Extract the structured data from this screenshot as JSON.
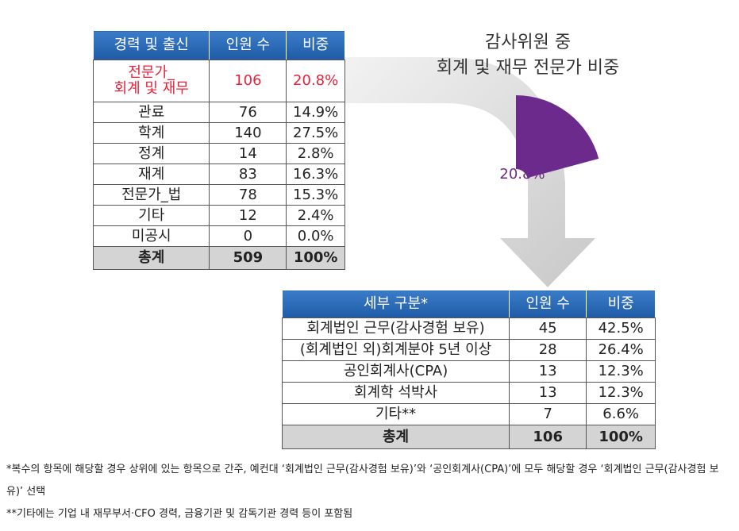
{
  "table1": {
    "header": [
      "경력 및 출신",
      "인원 수",
      "비중"
    ],
    "rows": [
      [
        "전문가_\n회계 및 재무",
        "106",
        "20.8%"
      ],
      [
        "관료",
        "76",
        "14.9%"
      ],
      [
        "학계",
        "140",
        "27.5%"
      ],
      [
        "정계",
        "14",
        "2.8%"
      ],
      [
        "재계",
        "83",
        "16.3%"
      ],
      [
        "전문가_법",
        "78",
        "15.3%"
      ],
      [
        "기타",
        "12",
        "2.4%"
      ],
      [
        "미공시",
        "0",
        "0.0%"
      ]
    ],
    "total": [
      "총계",
      "509",
      "100%"
    ]
  },
  "chart_data": {
    "type": "pie",
    "title": "감사위원 중",
    "subtitle": "회계 및 재무 전문가 비중",
    "values": [
      20.8
    ],
    "value_labels": [
      "20.8%"
    ],
    "color": "#6b2a8c"
  },
  "table2": {
    "header": [
      "세부 구분*",
      "인원 수",
      "비중"
    ],
    "rows": [
      [
        "회계법인 근무(감사경험 보유)",
        "45",
        "42.5%"
      ],
      [
        "(회계법인 외)회계분야 5년 이상",
        "28",
        "26.4%"
      ],
      [
        "공인회계사(CPA)",
        "13",
        "12.3%"
      ],
      [
        "회계학 석박사",
        "13",
        "12.3%"
      ],
      [
        "기타**",
        "7",
        "6.6%"
      ]
    ],
    "total": [
      "총계",
      "106",
      "100%"
    ]
  },
  "footnotes": [
    "*복수의 항목에 해당할 경우 상위에 있는 항목으로 간주, 예컨대 ‘회계법인 근무(감사경험 보유)’와 ‘공인회계사(CPA)’에 모두 해당할 경우 ‘회계법인 근무(감사경험 보유)’ 선택",
    "**기타에는 기업 내 재무부서·CFO 경력, 금융기관 및 감독기관 경력 등이 포함됨"
  ]
}
